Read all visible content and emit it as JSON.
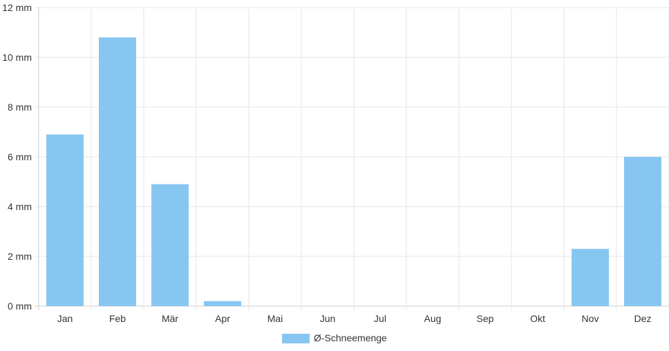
{
  "chart_data": {
    "type": "bar",
    "categories": [
      "Jan",
      "Feb",
      "Mär",
      "Apr",
      "Mai",
      "Jun",
      "Jul",
      "Aug",
      "Sep",
      "Okt",
      "Nov",
      "Dez"
    ],
    "series": [
      {
        "name": "Ø-Schneemenge",
        "values": [
          6.9,
          10.8,
          4.9,
          0.2,
          0,
          0,
          0,
          0,
          0,
          0,
          2.3,
          6.0
        ]
      }
    ],
    "y_ticks": [
      "0 mm",
      "2 mm",
      "4 mm",
      "6 mm",
      "8 mm",
      "10 mm",
      "12 mm"
    ],
    "ylim": [
      0,
      12
    ],
    "unit": "mm",
    "grid": true,
    "legend_position": "bottom",
    "colors": {
      "bar": "#88c6f2",
      "grid": "#e5e5e5",
      "axis": "#cccccc",
      "text": "#333333"
    }
  }
}
